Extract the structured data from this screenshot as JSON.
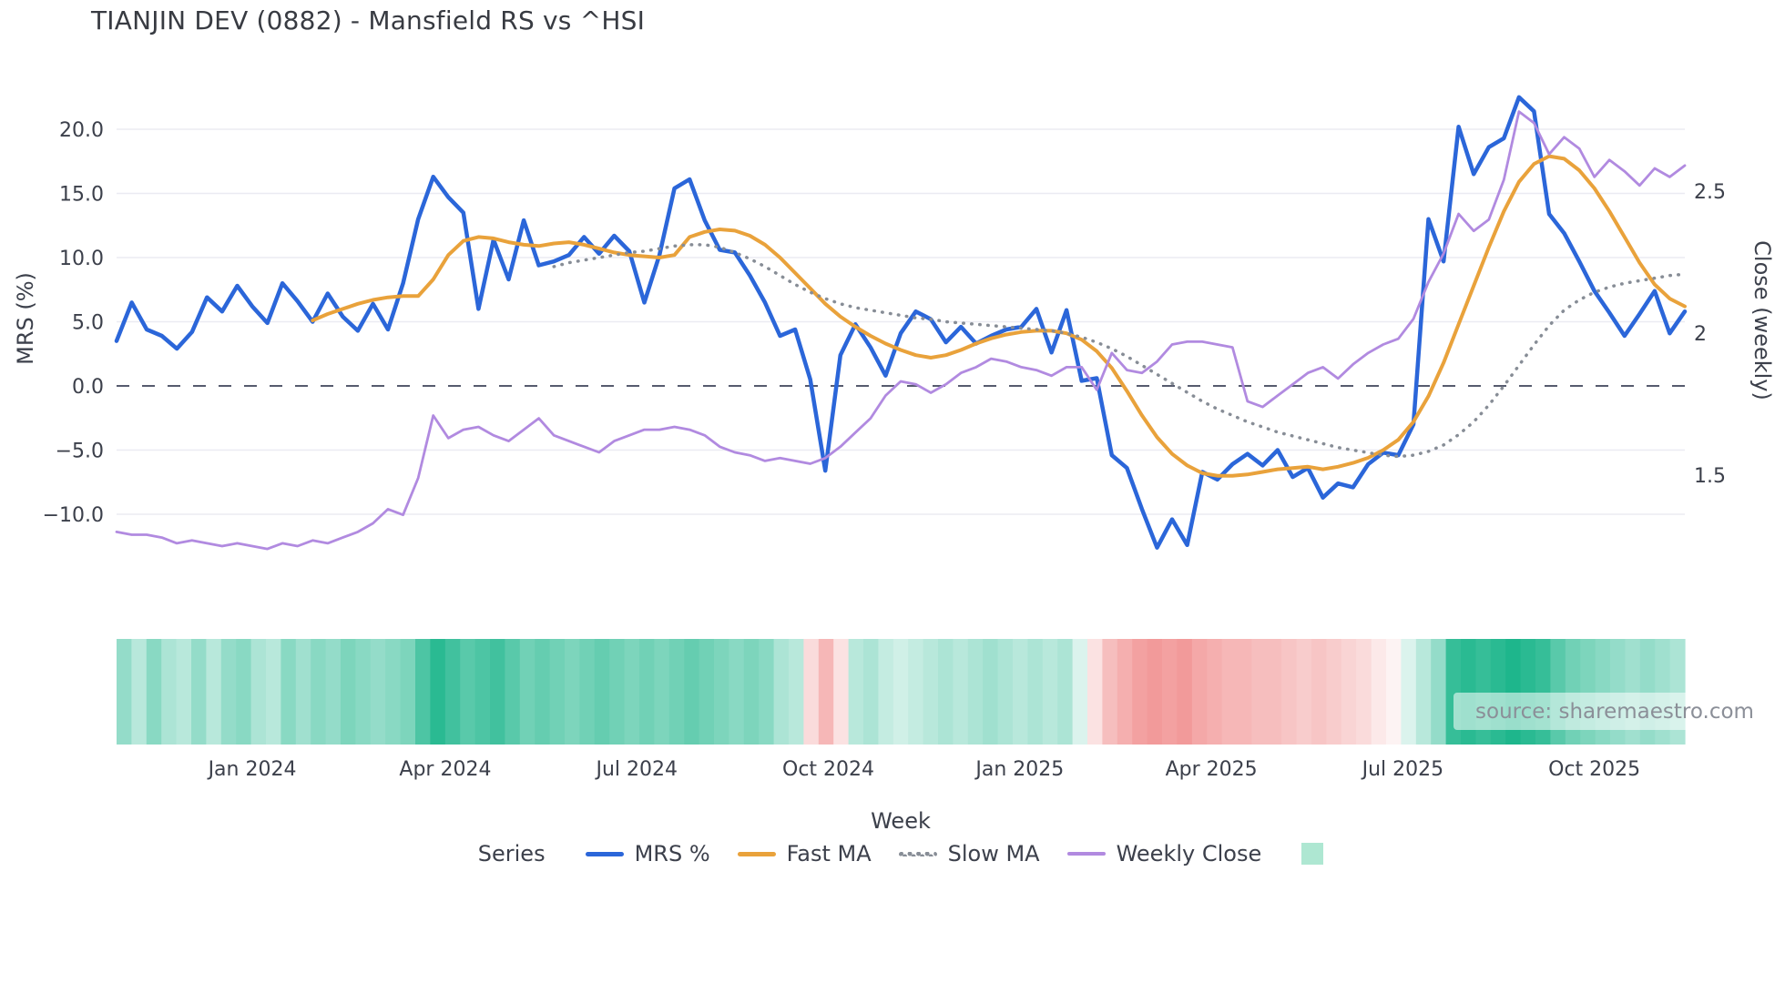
{
  "title": "TIANJIN DEV (0882) - Mansfield RS vs ^HSI",
  "source_text": "source: sharemaestro.com",
  "axes": {
    "left_title": "MRS (%)",
    "right_title": "Close (weekly)",
    "x_title": "Week",
    "left_ticks": [
      {
        "label": "20.0",
        "value": 20
      },
      {
        "label": "15.0",
        "value": 15
      },
      {
        "label": "10.0",
        "value": 10
      },
      {
        "label": "5.0",
        "value": 5
      },
      {
        "label": "0.0",
        "value": 0
      },
      {
        "label": "−5.0",
        "value": -5
      },
      {
        "label": "−10.0",
        "value": -10
      }
    ],
    "right_ticks": [
      {
        "label": "2.5",
        "value": 2.5
      },
      {
        "label": "2",
        "value": 2.0
      },
      {
        "label": "1.5",
        "value": 1.5
      }
    ],
    "x_ticks": [
      {
        "label": "Jan 2024",
        "index": 9
      },
      {
        "label": "Apr 2024",
        "index": 21.8
      },
      {
        "label": "Jul 2024",
        "index": 34.5
      },
      {
        "label": "Oct 2024",
        "index": 47.2
      },
      {
        "label": "Jan 2025",
        "index": 59.9
      },
      {
        "label": "Apr 2025",
        "index": 72.6
      },
      {
        "label": "Jul 2025",
        "index": 85.3
      },
      {
        "label": "Oct 2025",
        "index": 98
      }
    ]
  },
  "legend": {
    "series_label": "Series",
    "items": [
      {
        "label": "MRS %",
        "color": "#2b66d9",
        "style": "solid"
      },
      {
        "label": "Fast MA",
        "color": "#e9a23b",
        "style": "solid"
      },
      {
        "label": "Slow MA",
        "color": "#878d96",
        "style": "dotted"
      },
      {
        "label": "Weekly Close",
        "color": "#b18ae0",
        "style": "solid"
      }
    ],
    "heat_swatch_color": "#aee7d2"
  },
  "chart_data": {
    "type": "line",
    "title": "TIANJIN DEV (0882) - Mansfield RS vs ^HSI",
    "xlabel": "Week",
    "ylabel_left": "MRS (%)",
    "ylabel_right": "Close (weekly)",
    "x_unit": "week_index",
    "n_points": 105,
    "ylim_left": [
      -14,
      23.5
    ],
    "ylim_right": [
      1.15,
      2.85
    ],
    "grid": "horizontal",
    "zero_line": true,
    "series": [
      {
        "name": "MRS %",
        "axis": "left",
        "color": "#2b66d9",
        "style": "solid",
        "values": [
          3.5,
          6.5,
          4.4,
          3.9,
          2.9,
          4.2,
          6.9,
          5.8,
          7.8,
          6.2,
          4.9,
          8.0,
          6.6,
          5.0,
          7.2,
          5.4,
          4.3,
          6.4,
          4.4,
          8.0,
          13.0,
          16.3,
          14.7,
          13.5,
          6.0,
          11.4,
          8.3,
          12.9,
          9.4,
          9.7,
          10.2,
          11.6,
          10.3,
          11.7,
          10.5,
          6.5,
          10.2,
          15.4,
          16.1,
          12.9,
          10.6,
          10.4,
          8.6,
          6.5,
          3.9,
          4.4,
          0.5,
          -6.6,
          2.4,
          4.8,
          3.0,
          0.8,
          4.1,
          5.8,
          5.2,
          3.4,
          4.6,
          3.3,
          3.9,
          4.4,
          4.6,
          6.0,
          2.6,
          5.9,
          0.4,
          0.6,
          -5.4,
          -6.4,
          -9.6,
          -12.6,
          -10.4,
          -12.4,
          -6.7,
          -7.3,
          -6.1,
          -5.3,
          -6.2,
          -5.0,
          -7.1,
          -6.4,
          -8.7,
          -7.6,
          -7.9,
          -6.1,
          -5.2,
          -5.4,
          -3.0,
          13.0,
          9.7,
          20.2,
          16.5,
          18.6,
          19.3,
          22.5,
          21.4,
          13.4,
          11.9,
          9.7,
          7.4,
          5.7,
          3.9,
          5.6,
          7.4,
          4.1,
          5.8
        ]
      },
      {
        "name": "Fast MA",
        "axis": "left",
        "color": "#e9a23b",
        "style": "solid",
        "values": [
          null,
          null,
          null,
          null,
          null,
          null,
          null,
          null,
          null,
          null,
          null,
          null,
          null,
          5.1,
          5.6,
          6.0,
          6.4,
          6.7,
          6.9,
          7.0,
          7.0,
          8.3,
          10.2,
          11.3,
          11.6,
          11.5,
          11.2,
          11.0,
          10.9,
          11.1,
          11.2,
          11.0,
          10.7,
          10.4,
          10.2,
          10.1,
          10.0,
          10.2,
          11.6,
          12.0,
          12.2,
          12.1,
          11.7,
          11.0,
          10.0,
          8.8,
          7.6,
          6.4,
          5.4,
          4.6,
          3.9,
          3.3,
          2.8,
          2.4,
          2.2,
          2.4,
          2.8,
          3.3,
          3.7,
          4.0,
          4.2,
          4.3,
          4.3,
          4.1,
          3.6,
          2.7,
          1.4,
          -0.4,
          -2.3,
          -4.0,
          -5.3,
          -6.2,
          -6.8,
          -7.0,
          -7.0,
          -6.9,
          -6.7,
          -6.5,
          -6.4,
          -6.3,
          -6.5,
          -6.3,
          -6.0,
          -5.6,
          -5.0,
          -4.2,
          -2.8,
          -0.8,
          1.8,
          4.8,
          7.8,
          10.8,
          13.6,
          15.9,
          17.3,
          17.9,
          17.7,
          16.8,
          15.4,
          13.6,
          11.6,
          9.6,
          7.9,
          6.8,
          6.2
        ]
      },
      {
        "name": "Slow MA",
        "axis": "left",
        "color": "#878d96",
        "style": "dotted",
        "values": [
          null,
          null,
          null,
          null,
          null,
          null,
          null,
          null,
          null,
          null,
          null,
          null,
          null,
          null,
          null,
          null,
          null,
          null,
          null,
          null,
          null,
          null,
          null,
          null,
          null,
          null,
          null,
          null,
          null,
          9.3,
          9.6,
          9.8,
          10.0,
          10.2,
          10.4,
          10.5,
          10.7,
          10.9,
          11.0,
          11.0,
          10.8,
          10.4,
          9.9,
          9.3,
          8.6,
          7.9,
          7.3,
          6.8,
          6.4,
          6.1,
          5.9,
          5.7,
          5.5,
          5.3,
          5.2,
          5.0,
          4.9,
          4.8,
          4.7,
          4.6,
          4.5,
          4.4,
          4.3,
          4.1,
          3.8,
          3.4,
          2.9,
          2.3,
          1.6,
          0.9,
          0.2,
          -0.5,
          -1.2,
          -1.8,
          -2.3,
          -2.8,
          -3.2,
          -3.6,
          -3.9,
          -4.2,
          -4.5,
          -4.8,
          -5.0,
          -5.2,
          -5.4,
          -5.5,
          -5.4,
          -5.1,
          -4.6,
          -3.8,
          -2.8,
          -1.5,
          0.0,
          1.6,
          3.2,
          4.7,
          5.9,
          6.7,
          7.3,
          7.7,
          8.0,
          8.2,
          8.4,
          8.6,
          8.7
        ]
      },
      {
        "name": "Weekly Close",
        "axis": "right",
        "color": "#b18ae0",
        "style": "solid",
        "values": [
          1.3,
          1.29,
          1.29,
          1.28,
          1.26,
          1.27,
          1.26,
          1.25,
          1.26,
          1.25,
          1.24,
          1.26,
          1.25,
          1.27,
          1.26,
          1.28,
          1.3,
          1.33,
          1.38,
          1.36,
          1.49,
          1.71,
          1.63,
          1.66,
          1.67,
          1.64,
          1.62,
          1.66,
          1.7,
          1.64,
          1.62,
          1.6,
          1.58,
          1.62,
          1.64,
          1.66,
          1.66,
          1.67,
          1.66,
          1.64,
          1.6,
          1.58,
          1.57,
          1.55,
          1.56,
          1.55,
          1.54,
          1.56,
          1.6,
          1.65,
          1.7,
          1.78,
          1.83,
          1.82,
          1.79,
          1.82,
          1.86,
          1.88,
          1.91,
          1.9,
          1.88,
          1.87,
          1.85,
          1.88,
          1.88,
          1.8,
          1.93,
          1.87,
          1.86,
          1.9,
          1.96,
          1.97,
          1.97,
          1.96,
          1.95,
          1.76,
          1.74,
          1.78,
          1.82,
          1.86,
          1.88,
          1.84,
          1.89,
          1.93,
          1.96,
          1.98,
          2.05,
          2.18,
          2.28,
          2.42,
          2.36,
          2.4,
          2.54,
          2.78,
          2.74,
          2.63,
          2.69,
          2.65,
          2.55,
          2.61,
          2.57,
          2.52,
          2.58,
          2.55,
          2.59
        ]
      }
    ],
    "heatmap": {
      "description": "weekly strength strip under chart, green=positive red=negative",
      "positive_color": "#12b286",
      "negative_color": "#ec6e6e",
      "values": [
        0.45,
        0.3,
        0.5,
        0.35,
        0.3,
        0.45,
        0.3,
        0.45,
        0.5,
        0.35,
        0.3,
        0.5,
        0.4,
        0.5,
        0.45,
        0.55,
        0.5,
        0.45,
        0.5,
        0.55,
        0.75,
        0.9,
        0.8,
        0.7,
        0.75,
        0.8,
        0.7,
        0.6,
        0.65,
        0.6,
        0.55,
        0.6,
        0.65,
        0.6,
        0.55,
        0.6,
        0.55,
        0.6,
        0.65,
        0.6,
        0.55,
        0.5,
        0.55,
        0.5,
        0.35,
        0.3,
        -0.25,
        -0.5,
        -0.2,
        0.3,
        0.35,
        0.25,
        0.2,
        0.25,
        0.3,
        0.35,
        0.3,
        0.35,
        0.4,
        0.35,
        0.3,
        0.35,
        0.3,
        0.35,
        0.15,
        -0.2,
        -0.45,
        -0.55,
        -0.65,
        -0.7,
        -0.65,
        -0.7,
        -0.6,
        -0.55,
        -0.5,
        -0.5,
        -0.45,
        -0.45,
        -0.4,
        -0.35,
        -0.4,
        -0.35,
        -0.3,
        -0.25,
        -0.15,
        -0.08,
        0.15,
        0.3,
        0.45,
        0.85,
        0.9,
        0.85,
        0.9,
        0.95,
        0.9,
        0.85,
        0.7,
        0.6,
        0.55,
        0.5,
        0.45,
        0.4,
        0.45,
        0.4,
        0.35
      ]
    }
  }
}
